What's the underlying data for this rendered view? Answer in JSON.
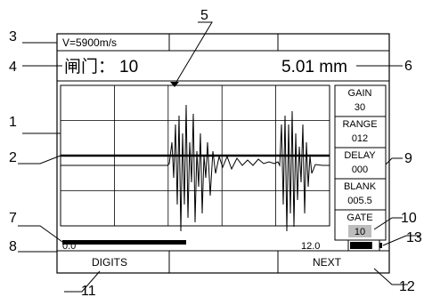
{
  "screen": {
    "velocity": "V=5900m/s",
    "gate_label": "闸门：",
    "gate_value": "10",
    "measurement": "5.01 mm",
    "scale_start": "0.0",
    "scale_end": "12.0",
    "softkeys": {
      "left": "DIGITS",
      "right": "NEXT"
    },
    "battery_level": 0.8
  },
  "params": [
    {
      "label": "GAIN",
      "value": "30"
    },
    {
      "label": "RANGE",
      "value": "012"
    },
    {
      "label": "DELAY",
      "value": "000"
    },
    {
      "label": "BLANK",
      "value": "005.5"
    },
    {
      "label": "GATE",
      "value": "10"
    }
  ],
  "callouts": [
    "1",
    "2",
    "3",
    "4",
    "5",
    "6",
    "7",
    "8",
    "9",
    "10",
    "11",
    "12",
    "13"
  ]
}
